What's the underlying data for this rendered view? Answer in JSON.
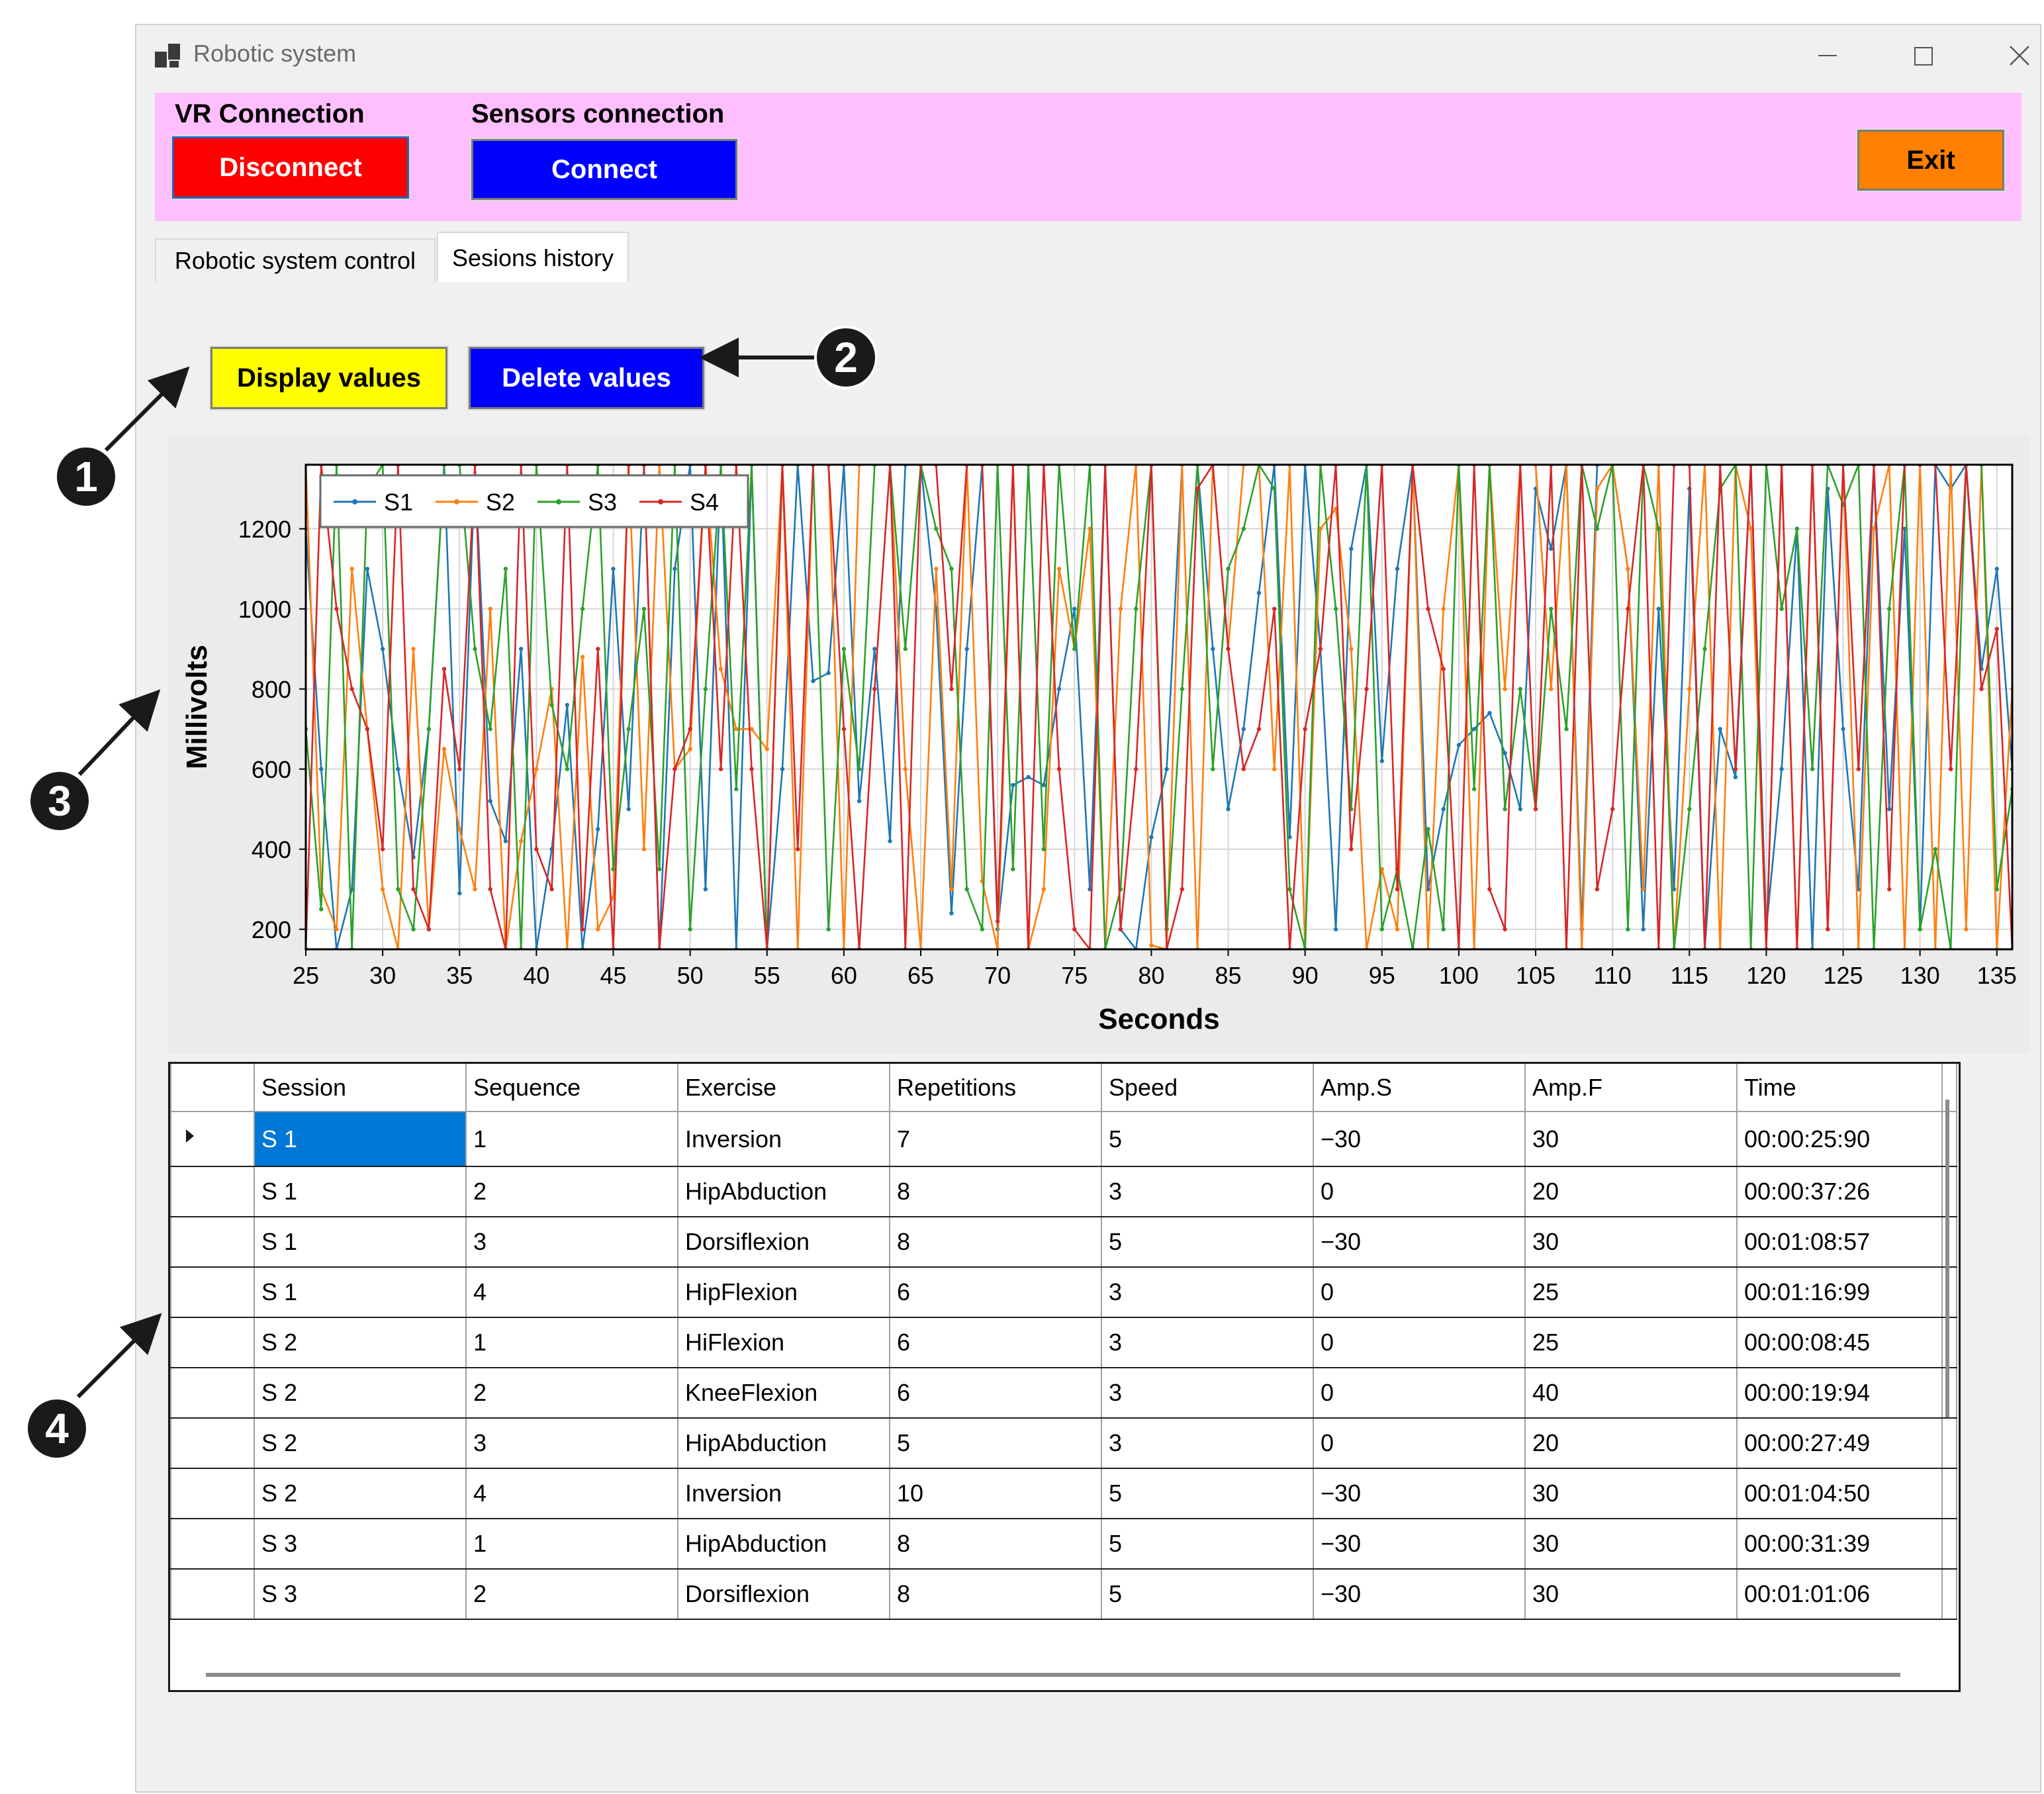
{
  "window": {
    "title": "Robotic system",
    "icons": {
      "app": "app-window-icon",
      "minimize": "minimize-icon",
      "maximize": "maximize-icon",
      "close": "close-icon"
    }
  },
  "connection_bar": {
    "vr_label": "VR Connection",
    "vr_button": "Disconnect",
    "sensors_label": "Sensors connection",
    "sensors_button": "Connect",
    "exit_button": "Exit",
    "colors": {
      "bar": "#ffbfff",
      "disconnect": "#ff0000",
      "connect": "#0000ff",
      "exit": "#ff8000"
    }
  },
  "tabs": [
    {
      "label": "Robotic system control",
      "active": false
    },
    {
      "label": "Sesions history",
      "active": true
    }
  ],
  "toolbar": {
    "display_values": "Display values",
    "delete_values": "Delete values",
    "colors": {
      "display": "#ffff00",
      "delete": "#0000ff"
    }
  },
  "annotations": [
    "1",
    "2",
    "3",
    "4"
  ],
  "chart_data": {
    "type": "line",
    "title": "",
    "xlabel": "Seconds",
    "ylabel": "Millivolts",
    "xlim": [
      25,
      136
    ],
    "ylim": [
      150,
      1360
    ],
    "xticks": [
      "25",
      "30",
      "35",
      "40",
      "45",
      "50",
      "55",
      "60",
      "65",
      "70",
      "75",
      "80",
      "85",
      "90",
      "95",
      "100",
      "105",
      "110",
      "115",
      "120",
      "125",
      "130",
      "135"
    ],
    "yticks": [
      "200",
      "400",
      "600",
      "800",
      "1000",
      "1200"
    ],
    "grid": true,
    "legend": "top-left",
    "x": [
      25,
      26,
      27,
      28,
      29,
      30,
      31,
      32,
      33,
      34,
      35,
      36,
      37,
      38,
      39,
      40,
      41,
      42,
      43,
      44,
      45,
      46,
      47,
      48,
      49,
      50,
      51,
      52,
      53,
      54,
      55,
      56,
      57,
      58,
      59,
      60,
      61,
      62,
      63,
      64,
      65,
      66,
      67,
      68,
      69,
      70,
      71,
      72,
      73,
      74,
      75,
      76,
      77,
      78,
      79,
      80,
      81,
      82,
      83,
      84,
      85,
      86,
      87,
      88,
      89,
      90,
      91,
      92,
      93,
      94,
      95,
      96,
      97,
      98,
      99,
      100,
      101,
      102,
      103,
      104,
      105,
      106,
      107,
      108,
      109,
      110,
      111,
      112,
      113,
      114,
      115,
      116,
      117,
      118,
      119,
      120,
      121,
      122,
      123,
      124,
      125,
      126,
      127,
      128,
      129,
      130,
      131,
      132,
      133,
      134,
      135,
      136
    ],
    "series": [
      {
        "name": "S1",
        "color": "#1f77b4",
        "values": [
          1200,
          600,
          150,
          300,
          1100,
          900,
          600,
          380,
          700,
          1360,
          290,
          1360,
          520,
          420,
          900,
          150,
          400,
          760,
          150,
          450,
          1100,
          500,
          1360,
          150,
          1100,
          1360,
          300,
          1360,
          150,
          1360,
          150,
          600,
          1360,
          820,
          840,
          1360,
          520,
          900,
          420,
          1360,
          1360,
          1000,
          240,
          900,
          1360,
          200,
          560,
          580,
          560,
          800,
          1000,
          300,
          1360,
          200,
          150,
          430,
          600,
          1360,
          1360,
          900,
          500,
          700,
          1040,
          1360,
          430,
          1360,
          900,
          200,
          1150,
          1360,
          620,
          1100,
          1360,
          300,
          500,
          660,
          700,
          740,
          640,
          500,
          1300,
          1150,
          1360,
          200,
          1360,
          1360,
          1100,
          200,
          1000,
          300,
          1300,
          150,
          700,
          580,
          1360,
          200,
          600,
          1200,
          150,
          1300,
          700,
          300,
          1360,
          500,
          1200,
          200,
          1360,
          1300,
          1360,
          850,
          1100,
          600
        ]
      },
      {
        "name": "S2",
        "color": "#ff7f0e",
        "values": [
          1360,
          300,
          200,
          1100,
          700,
          300,
          150,
          900,
          200,
          650,
          450,
          300,
          1000,
          150,
          420,
          600,
          800,
          150,
          880,
          200,
          280,
          1360,
          400,
          1360,
          600,
          650,
          1360,
          850,
          700,
          700,
          650,
          1360,
          150,
          1360,
          1360,
          150,
          1360,
          1360,
          1360,
          600,
          150,
          1100,
          300,
          1360,
          320,
          150,
          1360,
          150,
          300,
          1100,
          900,
          1200,
          150,
          1000,
          1360,
          160,
          150,
          1360,
          150,
          1360,
          900,
          1360,
          1360,
          600,
          1360,
          150,
          1200,
          1250,
          900,
          150,
          350,
          200,
          1360,
          150,
          1000,
          1360,
          150,
          1360,
          800,
          1360,
          1360,
          800,
          1360,
          150,
          1300,
          1360,
          1100,
          300,
          1360,
          150,
          800,
          1360,
          150,
          1360,
          1200,
          150,
          1360,
          150,
          1360,
          200,
          1360,
          150,
          1200,
          1360,
          150,
          1360,
          150,
          1360,
          200,
          1360,
          150,
          800
        ]
      },
      {
        "name": "S3",
        "color": "#2ca02c",
        "values": [
          700,
          250,
          1360,
          150,
          1300,
          1360,
          300,
          200,
          700,
          1360,
          1360,
          900,
          700,
          1100,
          150,
          1360,
          760,
          600,
          1000,
          1360,
          350,
          700,
          1000,
          350,
          1360,
          200,
          800,
          1360,
          550,
          1360,
          150,
          1360,
          1360,
          1360,
          200,
          900,
          600,
          1360,
          1360,
          900,
          1360,
          1200,
          1100,
          300,
          200,
          1360,
          350,
          1360,
          400,
          1360,
          900,
          1360,
          150,
          300,
          1000,
          1360,
          200,
          800,
          1360,
          600,
          1100,
          1200,
          1360,
          1300,
          300,
          150,
          1360,
          1000,
          500,
          1360,
          200,
          350,
          150,
          450,
          200,
          1360,
          550,
          1360,
          500,
          800,
          500,
          1000,
          700,
          1360,
          1200,
          1360,
          200,
          1360,
          1200,
          150,
          500,
          900,
          1300,
          1360,
          150,
          1360,
          1000,
          1200,
          600,
          1360,
          1260,
          1360,
          150,
          1000,
          1360,
          200,
          400,
          150,
          1360,
          1360,
          300,
          550
        ]
      },
      {
        "name": "S4",
        "color": "#d62728",
        "values": [
          150,
          1360,
          1000,
          800,
          700,
          400,
          1360,
          300,
          200,
          850,
          600,
          1360,
          300,
          150,
          1360,
          400,
          300,
          1360,
          200,
          900,
          150,
          1360,
          1360,
          150,
          600,
          700,
          1360,
          600,
          1360,
          600,
          150,
          1360,
          400,
          1360,
          1360,
          700,
          150,
          800,
          1360,
          150,
          1360,
          1360,
          800,
          1360,
          1360,
          220,
          1360,
          150,
          1360,
          600,
          200,
          150,
          1360,
          200,
          600,
          1360,
          150,
          300,
          1300,
          1360,
          900,
          600,
          700,
          1000,
          150,
          700,
          900,
          1360,
          400,
          800,
          1360,
          300,
          1360,
          1000,
          850,
          150,
          1360,
          300,
          200,
          1360,
          500,
          1360,
          150,
          1360,
          300,
          500,
          1000,
          1360,
          150,
          1360,
          1360,
          150,
          1360,
          600,
          1360,
          150,
          1360,
          150,
          1360,
          200,
          1360,
          600,
          1360,
          300,
          1360,
          1360,
          1360,
          600,
          1360,
          800,
          950,
          150
        ]
      }
    ]
  },
  "table": {
    "columns": [
      "Session",
      "Sequence",
      "Exercise",
      "Repetitions",
      "Speed",
      "Amp.S",
      "Amp.F",
      "Time"
    ],
    "rows": [
      [
        "S 1",
        "1",
        "Inversion",
        "7",
        "5",
        "−30",
        "30",
        "00:00:25:90"
      ],
      [
        "S 1",
        "2",
        "HipAbduction",
        "8",
        "3",
        "0",
        "20",
        "00:00:37:26"
      ],
      [
        "S 1",
        "3",
        "Dorsiflexion",
        "8",
        "5",
        "−30",
        "30",
        "00:01:08:57"
      ],
      [
        "S 1",
        "4",
        "HipFlexion",
        "6",
        "3",
        "0",
        "25",
        "00:01:16:99"
      ],
      [
        "S 2",
        "1",
        "HiFlexion",
        "6",
        "3",
        "0",
        "25",
        "00:00:08:45"
      ],
      [
        "S 2",
        "2",
        "KneeFlexion",
        "6",
        "3",
        "0",
        "40",
        "00:00:19:94"
      ],
      [
        "S 2",
        "3",
        "HipAbduction",
        "5",
        "3",
        "0",
        "20",
        "00:00:27:49"
      ],
      [
        "S 2",
        "4",
        "Inversion",
        "10",
        "5",
        "−30",
        "30",
        "00:01:04:50"
      ],
      [
        "S 3",
        "1",
        "HipAbduction",
        "8",
        "5",
        "−30",
        "30",
        "00:00:31:39"
      ],
      [
        "S 3",
        "2",
        "Dorsiflexion",
        "8",
        "5",
        "−30",
        "30",
        "00:01:01:06"
      ]
    ],
    "selected_cell_color": "#0078d7"
  }
}
